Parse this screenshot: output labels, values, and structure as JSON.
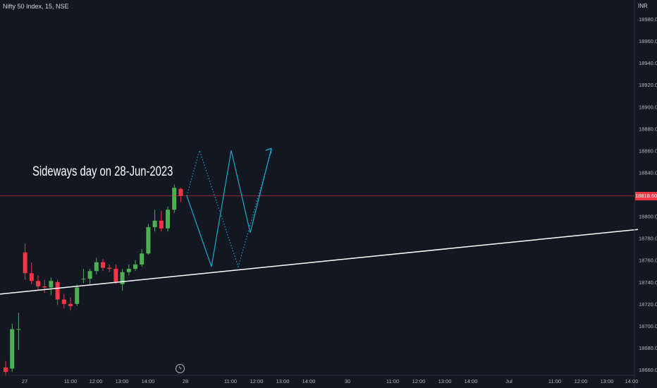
{
  "header": {
    "symbol": "Nifty 50 Index, 15, NSE",
    "currency": "INR"
  },
  "annotation": {
    "text": "Sideways day on 28-Jun-2023"
  },
  "last_price_label": "18818.60",
  "event_icon": "flash-icon",
  "colors": {
    "background": "#131722",
    "up": "#26a69a",
    "up_body": "#4caf50",
    "down": "#f23645",
    "projection": "#1ba7c9",
    "trendline": "#ffffff",
    "price_line": "#f23645",
    "axis_text": "#b2b5be"
  },
  "chart_data": {
    "type": "candlestick",
    "title": "Nifty 50 Index, 15, NSE",
    "y_unit": "INR",
    "ylim": [
      18650,
      18995
    ],
    "y_ticks": [
      18660,
      18680,
      18700,
      18720,
      18740,
      18760,
      18780,
      18800,
      18820,
      18840,
      18860,
      18880,
      18900,
      18920,
      18940,
      18960,
      18980
    ],
    "x_ticks": [
      "27",
      "11:00",
      "12:00",
      "13:00",
      "14:00",
      "28",
      "11:00",
      "12:00",
      "13:00",
      "14:00",
      "30",
      "11:00",
      "12:00",
      "13:00",
      "14:00",
      "Jul",
      "11:00",
      "12:00",
      "13:00",
      "14:00"
    ],
    "candles": [
      {
        "o": 18662,
        "h": 18668,
        "l": 18655,
        "c": 18658
      },
      {
        "o": 18661,
        "h": 18702,
        "l": 18658,
        "c": 18697
      },
      {
        "o": 18697,
        "h": 18712,
        "l": 18678,
        "c": 18697
      },
      {
        "o": 18767,
        "h": 18775,
        "l": 18742,
        "c": 18748
      },
      {
        "o": 18748,
        "h": 18758,
        "l": 18738,
        "c": 18741
      },
      {
        "o": 18741,
        "h": 18746,
        "l": 18733,
        "c": 18736
      },
      {
        "o": 18736,
        "h": 18742,
        "l": 18730,
        "c": 18735
      },
      {
        "o": 18735,
        "h": 18744,
        "l": 18728,
        "c": 18741
      },
      {
        "o": 18740,
        "h": 18742,
        "l": 18719,
        "c": 18724
      },
      {
        "o": 18724,
        "h": 18729,
        "l": 18716,
        "c": 18720
      },
      {
        "o": 18720,
        "h": 18726,
        "l": 18714,
        "c": 18718
      },
      {
        "o": 18720,
        "h": 18738,
        "l": 18718,
        "c": 18735
      },
      {
        "o": 18743,
        "h": 18752,
        "l": 18739,
        "c": 18743
      },
      {
        "o": 18743,
        "h": 18752,
        "l": 18738,
        "c": 18750
      },
      {
        "o": 18750,
        "h": 18762,
        "l": 18747,
        "c": 18758
      },
      {
        "o": 18758,
        "h": 18761,
        "l": 18750,
        "c": 18753
      },
      {
        "o": 18753,
        "h": 18756,
        "l": 18749,
        "c": 18752
      },
      {
        "o": 18752,
        "h": 18756,
        "l": 18738,
        "c": 18740
      },
      {
        "o": 18738,
        "h": 18752,
        "l": 18732,
        "c": 18749
      },
      {
        "o": 18749,
        "h": 18756,
        "l": 18746,
        "c": 18752
      },
      {
        "o": 18752,
        "h": 18760,
        "l": 18750,
        "c": 18756
      },
      {
        "o": 18756,
        "h": 18770,
        "l": 18754,
        "c": 18766
      },
      {
        "o": 18766,
        "h": 18793,
        "l": 18765,
        "c": 18790
      },
      {
        "o": 18790,
        "h": 18806,
        "l": 18786,
        "c": 18796
      },
      {
        "o": 18796,
        "h": 18805,
        "l": 18786,
        "c": 18789
      },
      {
        "o": 18789,
        "h": 18809,
        "l": 18786,
        "c": 18806
      },
      {
        "o": 18806,
        "h": 18829,
        "l": 18803,
        "c": 18826
      },
      {
        "o": 18825,
        "h": 18826,
        "l": 18813,
        "c": 18818.6
      }
    ],
    "last_price": 18818.6,
    "projections": [
      {
        "style": "dotted",
        "points": [
          [
            18818.6,
            0
          ],
          [
            18860,
            1
          ],
          [
            18754,
            2
          ],
          [
            18860,
            3
          ]
        ]
      },
      {
        "style": "solid",
        "points": [
          [
            18818.6,
            0
          ],
          [
            18754,
            1
          ],
          [
            18860,
            2
          ],
          [
            18785,
            3
          ],
          [
            18862,
            4
          ]
        ]
      }
    ],
    "trendline": {
      "from": 18729,
      "to": 18788
    }
  }
}
